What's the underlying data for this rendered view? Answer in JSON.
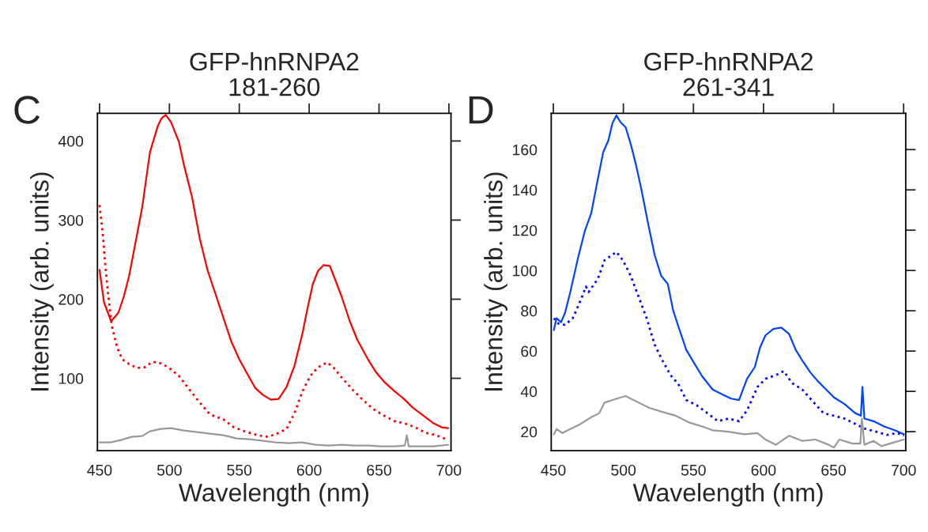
{
  "chart_data": [
    {
      "type": "line",
      "title": "GFP-hnRNPA2\n181-260",
      "xlabel": "Wavelength (nm)",
      "ylabel": "Intensity (arb. units)",
      "annotations": [
        "C"
      ],
      "xlim": [
        448.5,
        701.5
      ],
      "ylim": [
        8.6,
        435
      ],
      "xticks": [
        450,
        500,
        550,
        600,
        650,
        700
      ],
      "yticks": [
        100,
        200,
        300,
        400
      ],
      "grid": false,
      "legend": false,
      "series": [
        {
          "color": "#ff0000",
          "line_style": "solid",
          "x": [
            450,
            453.2,
            456,
            458.3,
            463.5,
            467.3,
            471.1,
            474.8,
            480.5,
            486.1,
            491.7,
            494.5,
            497.4,
            501.1,
            506.8,
            510.5,
            516.2,
            521.8,
            527.4,
            533.1,
            538.7,
            544.4,
            550,
            555.6,
            561.3,
            566.9,
            572.6,
            578.2,
            583.8,
            589.5,
            595.1,
            598.9,
            602.6,
            606.4,
            610.2,
            614.8,
            617.7,
            623.3,
            628.9,
            634.6,
            642.1,
            647.7,
            653.4,
            660.9,
            668.4,
            674.1,
            681.6,
            689.1,
            694.7,
            699.4
          ],
          "values": [
            237,
            196,
            183,
            172,
            183,
            203,
            229,
            263,
            316,
            386,
            419,
            429,
            433,
            424,
            399,
            369,
            329,
            276,
            236,
            206,
            176,
            146,
            124,
            106,
            88,
            79,
            73,
            74,
            89,
            116,
            156,
            189,
            219,
            236,
            243,
            242,
            229,
            203,
            173,
            148,
            124,
            108,
            96,
            84,
            73,
            63,
            53,
            43,
            38,
            37
          ]
        },
        {
          "color": "#ff0000",
          "line_style": "dotted",
          "x": [
            450,
            452.3,
            454.1,
            456,
            458.8,
            462.6,
            466.3,
            471.1,
            476.7,
            482.3,
            488,
            493.6,
            499.2,
            506.8,
            514.3,
            521.8,
            529.3,
            538.7,
            546.2,
            553.8,
            563.2,
            570.7,
            578.2,
            583.8,
            589.5,
            595.1,
            600.8,
            606.4,
            613,
            617.7,
            623.3,
            630.8,
            638.3,
            645.9,
            653.4,
            660.9,
            668.4,
            675.9,
            683.5,
            691,
            698.1
          ],
          "values": [
            319,
            283,
            243,
            209,
            166,
            139,
            124,
            118,
            113,
            114,
            121,
            119,
            114,
            103,
            86,
            69,
            54,
            48,
            38,
            33,
            28,
            26,
            31,
            36,
            56,
            83,
            103,
            114,
            120,
            113,
            101,
            86,
            73,
            61,
            53,
            46,
            43,
            38,
            31,
            28,
            23
          ]
        },
        {
          "color": "#999999",
          "line_style": "solid",
          "x": [
            450,
            457.9,
            465.4,
            472.9,
            480.5,
            486.1,
            493.6,
            501.1,
            510.5,
            519.9,
            529.3,
            538.7,
            548.1,
            557.5,
            566.9,
            576.3,
            585.7,
            595.1,
            604.5,
            613.9,
            623.3,
            632.7,
            642.1,
            651.5,
            660.9,
            668.4,
            669.9,
            671.2,
            679.7,
            689.1,
            699.4
          ],
          "values": [
            19,
            19,
            22,
            26,
            27,
            33,
            36,
            37,
            34,
            32,
            30,
            28,
            24,
            23,
            21,
            19,
            18,
            19,
            16,
            15,
            16,
            15,
            15,
            14,
            14,
            15,
            28,
            14,
            14,
            14,
            16
          ]
        }
      ]
    },
    {
      "type": "line",
      "title": "GFP-hnRNPA2\n261-341",
      "xlabel": "Wavelength (nm)",
      "ylabel": "Intensity (arb. units)",
      "annotations": [
        "D"
      ],
      "xlim": [
        448.5,
        701.5
      ],
      "ylim": [
        10.6,
        178
      ],
      "xticks": [
        450,
        500,
        550,
        600,
        650,
        700
      ],
      "yticks": [
        20,
        40,
        60,
        80,
        100,
        120,
        140,
        160
      ],
      "grid": false,
      "legend": false,
      "series": [
        {
          "color": "#0044ff",
          "line_style": "solid",
          "x": [
            450.4,
            452.3,
            455.5,
            458.3,
            462.1,
            467.7,
            472.4,
            477.1,
            480.9,
            485.6,
            489.3,
            492.2,
            495,
            497.8,
            501.6,
            505.3,
            509.1,
            512.8,
            517.6,
            522.3,
            527,
            531.7,
            535.5,
            539.2,
            544.9,
            550.5,
            556.2,
            563.7,
            571.2,
            576.9,
            582.5,
            588.2,
            593.8,
            597.6,
            601.4,
            607,
            612.7,
            618.3,
            623,
            627.7,
            633.4,
            639,
            644.7,
            650.3,
            657.8,
            665.4,
            669.5,
            670.6,
            672,
            678.5,
            686.1,
            693.6,
            700.2
          ],
          "values": [
            70.4,
            76.3,
            74.3,
            78.9,
            89.3,
            106.4,
            119.4,
            128.6,
            142.3,
            158.7,
            164.6,
            173.1,
            177,
            173.7,
            171.1,
            162.6,
            152.1,
            140.4,
            123.4,
            107.7,
            97.3,
            93.3,
            80.2,
            72.3,
            60.6,
            54,
            47.5,
            40.9,
            38.3,
            36.4,
            35.7,
            46.2,
            52.1,
            61.9,
            67.8,
            71,
            71.7,
            68.4,
            60.6,
            55.3,
            49.4,
            44.9,
            40.9,
            37,
            33.7,
            29.2,
            27.9,
            42.2,
            26.5,
            25.2,
            22.6,
            20.7,
            18.7
          ]
        },
        {
          "color": "#0000ff",
          "line_style": "dotted",
          "x": [
            450.4,
            453.6,
            458.3,
            463.9,
            469.6,
            473.3,
            475.2,
            481.8,
            486.5,
            495,
            499.7,
            505.3,
            511,
            516.6,
            522.3,
            527.9,
            533.6,
            539.2,
            544.9,
            552.4,
            559.9,
            567.5,
            575,
            582.5,
            588.2,
            595.7,
            601.4,
            608.9,
            614.5,
            620.2,
            627.7,
            635.2,
            642.8,
            650.3,
            657.8,
            665.4,
            672.9,
            680.4,
            688,
            695.5,
            700.2
          ],
          "values": [
            76.3,
            73.6,
            73,
            76.3,
            85.4,
            92,
            89.3,
            95.9,
            105,
            109.2,
            105,
            97.2,
            86.7,
            76.3,
            63.2,
            55.3,
            48.1,
            43.6,
            35.7,
            33.1,
            29.2,
            25.2,
            26.5,
            25.2,
            30.5,
            42.2,
            46.2,
            48.1,
            50.1,
            44.2,
            40.9,
            35,
            29.2,
            27.9,
            26.5,
            23.9,
            21.3,
            20,
            18.4,
            19.3,
            18
          ]
        },
        {
          "color": "#999999",
          "line_style": "solid",
          "x": [
            450.4,
            452.3,
            456.4,
            462.1,
            469.6,
            477.1,
            482.8,
            486.5,
            492.2,
            501.6,
            511,
            518.5,
            527.9,
            537.3,
            546.8,
            556.2,
            563.7,
            575,
            586.3,
            595.7,
            601.4,
            608.9,
            618.3,
            627.7,
            637.1,
            646.5,
            650.3,
            654.1,
            663.5,
            669.1,
            670.2,
            672,
            678.5,
            684.2,
            693.6,
            700.2
          ],
          "values": [
            18.7,
            21.3,
            19.3,
            21.3,
            23.9,
            27.2,
            29.2,
            34.4,
            35.7,
            37.7,
            34.4,
            31.8,
            29.8,
            27.9,
            24.6,
            22.6,
            20.7,
            20,
            18.7,
            19.3,
            16.1,
            13.5,
            18,
            15.4,
            16.1,
            13.5,
            12.1,
            16.1,
            14.1,
            14.1,
            26.5,
            13.5,
            15.4,
            12.8,
            14.8,
            16.1
          ]
        }
      ]
    }
  ]
}
